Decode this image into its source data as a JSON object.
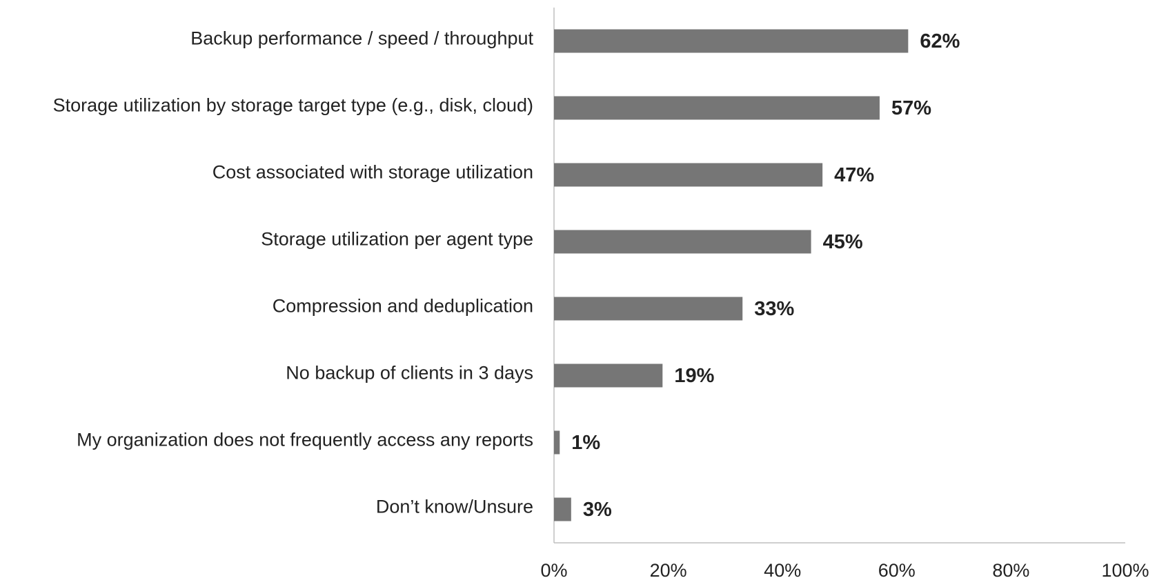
{
  "chart_data": {
    "type": "hbar",
    "categories": [
      "Backup performance / speed / throughput",
      "Storage utilization by storage target type (e.g., disk, cloud)",
      "Cost associated with storage utilization",
      "Storage utilization per agent type",
      "Compression and deduplication",
      "No backup of clients in 3 days",
      "My organization does not frequently access any reports",
      "Don’t know/Unsure"
    ],
    "values": [
      62,
      57,
      47,
      45,
      33,
      19,
      1,
      3
    ],
    "value_labels": [
      "62%",
      "57%",
      "47%",
      "45%",
      "33%",
      "19%",
      "1%",
      "3%"
    ],
    "color": "#767676",
    "xlim": [
      0,
      100
    ],
    "xticks": [
      {
        "value": 0,
        "label": "0%"
      },
      {
        "value": 20,
        "label": "20%"
      },
      {
        "value": 40,
        "label": "40%"
      },
      {
        "value": 60,
        "label": "60%"
      },
      {
        "value": 80,
        "label": "80%"
      },
      {
        "value": 100,
        "label": "100%"
      }
    ],
    "grid": false
  }
}
